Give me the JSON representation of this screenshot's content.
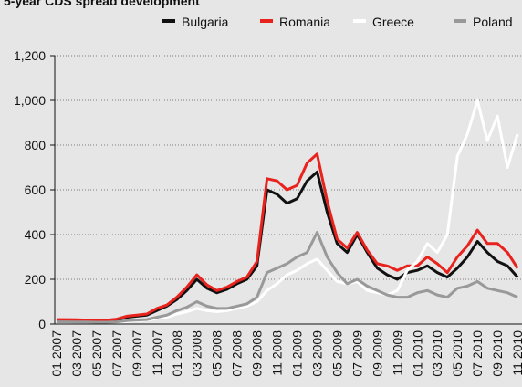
{
  "chart_data": {
    "type": "line",
    "title": "5-year CDS spread development",
    "categories": [
      "01 2007",
      null,
      "03 2007",
      null,
      "05 2007",
      null,
      "07 2007",
      null,
      "09 2007",
      null,
      "11 2007",
      null,
      "01 2008",
      null,
      "03 2008",
      null,
      "05 2008",
      null,
      "07 2008",
      null,
      "09 2008",
      null,
      "11 2008",
      null,
      "01 2009",
      null,
      "03 2009",
      null,
      "05 2009",
      null,
      "07 2009",
      null,
      "09 2009",
      null,
      "11 2009",
      null,
      "01 2010",
      null,
      "03 2010",
      null,
      "05 2010",
      null,
      "07 2010",
      null,
      "09 2010",
      null,
      "11 2010"
    ],
    "series": [
      {
        "name": "Bulgaria",
        "color": "#111111",
        "values": [
          17,
          17,
          16,
          15,
          14,
          14,
          18,
          30,
          35,
          40,
          60,
          80,
          110,
          150,
          200,
          160,
          140,
          155,
          180,
          200,
          260,
          600,
          580,
          540,
          560,
          640,
          680,
          500,
          360,
          320,
          400,
          320,
          250,
          220,
          200,
          230,
          240,
          260,
          230,
          210,
          250,
          300,
          370,
          320,
          280,
          260,
          210
        ]
      },
      {
        "name": "Romania",
        "color": "#e8231e",
        "values": [
          20,
          20,
          19,
          18,
          17,
          17,
          22,
          35,
          40,
          45,
          70,
          85,
          120,
          165,
          220,
          175,
          150,
          165,
          190,
          210,
          280,
          650,
          640,
          600,
          620,
          720,
          760,
          550,
          380,
          340,
          410,
          330,
          270,
          260,
          240,
          260,
          260,
          300,
          270,
          230,
          300,
          350,
          420,
          360,
          360,
          320,
          250
        ]
      },
      {
        "name": "Greece",
        "color": "#ffffff",
        "values": [
          8,
          8,
          7,
          7,
          6,
          6,
          8,
          12,
          15,
          18,
          25,
          30,
          45,
          55,
          70,
          60,
          55,
          60,
          70,
          80,
          100,
          150,
          180,
          220,
          240,
          270,
          290,
          240,
          190,
          180,
          190,
          150,
          140,
          130,
          150,
          240,
          280,
          360,
          320,
          400,
          750,
          850,
          1000,
          820,
          930,
          700,
          850
        ]
      },
      {
        "name": "Poland",
        "color": "#999999",
        "values": [
          10,
          10,
          9,
          9,
          8,
          8,
          10,
          15,
          18,
          20,
          30,
          40,
          60,
          75,
          100,
          80,
          70,
          70,
          80,
          90,
          120,
          230,
          250,
          270,
          300,
          320,
          410,
          300,
          230,
          180,
          200,
          170,
          150,
          130,
          120,
          120,
          140,
          150,
          130,
          120,
          160,
          170,
          190,
          160,
          150,
          140,
          120
        ]
      }
    ],
    "ylim": [
      0,
      1200
    ],
    "yticks": [
      0,
      200,
      400,
      600,
      800,
      {
        "value": 1000,
        "label": "1,000"
      },
      {
        "value": 1200,
        "label": "1,200"
      }
    ],
    "grid": true
  }
}
